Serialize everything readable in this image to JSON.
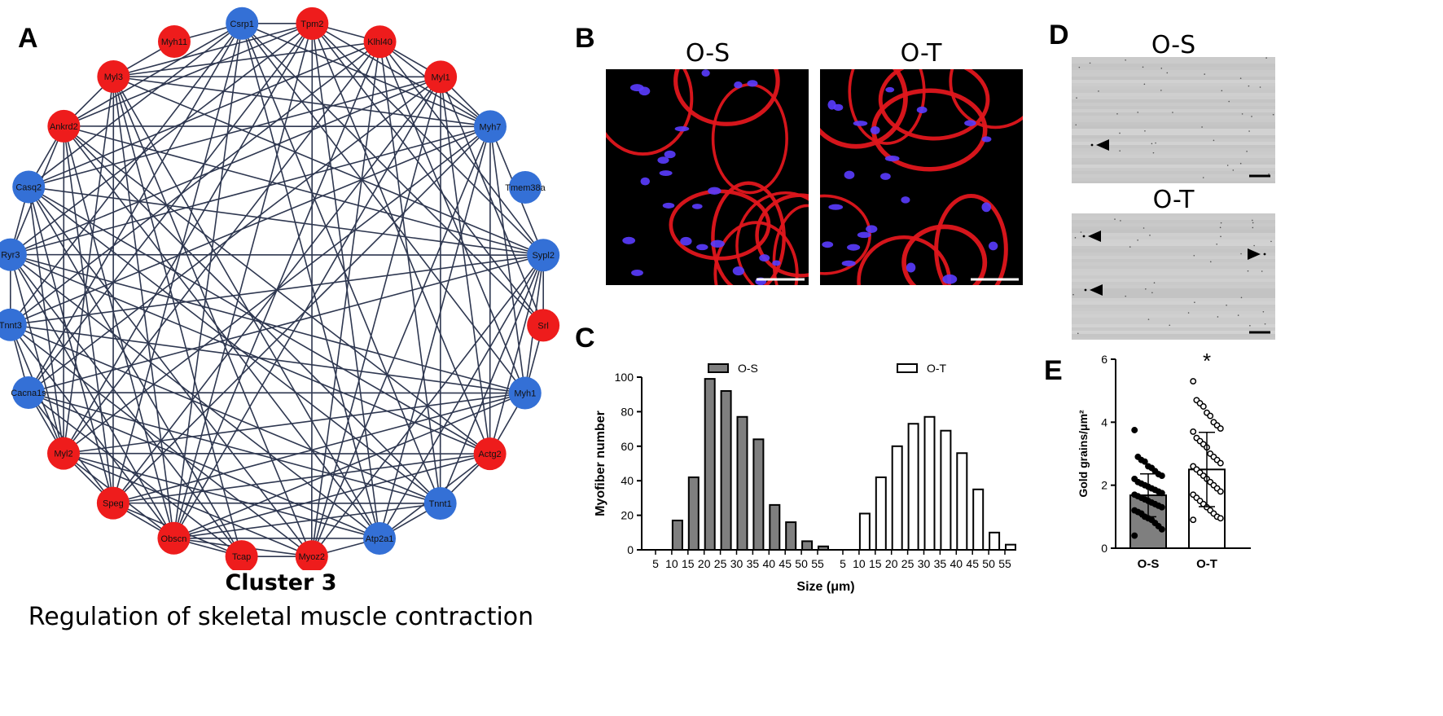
{
  "panels": {
    "a": "A",
    "b": "B",
    "c": "C",
    "d": "D",
    "e": "E"
  },
  "network": {
    "title": "Cluster 3",
    "subtitle": "Regulation of skeletal muscle contraction",
    "node_colors": {
      "up": "#ee1c1c",
      "down": "#3470d6"
    },
    "nodes": [
      {
        "label": "Csrp1",
        "group": "down"
      },
      {
        "label": "Tpm2",
        "group": "up"
      },
      {
        "label": "Klhl40",
        "group": "up"
      },
      {
        "label": "Myl1",
        "group": "up"
      },
      {
        "label": "Myh7",
        "group": "down"
      },
      {
        "label": "Tmem38a",
        "group": "down"
      },
      {
        "label": "Sypl2",
        "group": "down"
      },
      {
        "label": "Srl",
        "group": "up"
      },
      {
        "label": "Myh1",
        "group": "down"
      },
      {
        "label": "Actg2",
        "group": "up"
      },
      {
        "label": "Tnnt1",
        "group": "down"
      },
      {
        "label": "Atp2a1",
        "group": "down"
      },
      {
        "label": "Myoz2",
        "group": "up"
      },
      {
        "label": "Tcap",
        "group": "up"
      },
      {
        "label": "Obscn",
        "group": "up"
      },
      {
        "label": "Speg",
        "group": "up"
      },
      {
        "label": "Myl2",
        "group": "up"
      },
      {
        "label": "Cacna1s",
        "group": "down"
      },
      {
        "label": "Tnnt3",
        "group": "down"
      },
      {
        "label": "Ryr3",
        "group": "down"
      },
      {
        "label": "Casq2",
        "group": "down"
      },
      {
        "label": "Ankrd2",
        "group": "up"
      },
      {
        "label": "Myl3",
        "group": "up"
      },
      {
        "label": "Myh11",
        "group": "up"
      }
    ]
  },
  "micrographs": {
    "left_label": "O-S",
    "right_label": "O-T"
  },
  "tem": {
    "top_label": "O-S",
    "bottom_label": "O-T"
  },
  "chart_data": [
    {
      "type": "bar",
      "panel": "C",
      "xlabel": "Size (μm)",
      "ylabel": "Myofiber number",
      "ylim": [
        0,
        100
      ],
      "yticks": [
        0,
        20,
        40,
        60,
        80,
        100
      ],
      "categories": [
        "5",
        "10",
        "15",
        "20",
        "25",
        "30",
        "35",
        "40",
        "45",
        "50",
        "55"
      ],
      "series": [
        {
          "name": "O-S",
          "color": "#7f7f7f",
          "values": [
            0,
            17,
            42,
            99,
            92,
            77,
            64,
            26,
            16,
            5,
            2
          ]
        },
        {
          "name": "O-T",
          "color": "#ffffff",
          "values": [
            0,
            21,
            42,
            60,
            73,
            77,
            69,
            56,
            35,
            10,
            3
          ]
        }
      ]
    },
    {
      "type": "scatter",
      "panel": "E",
      "ylabel": "Gold grains/μm²",
      "ylim": [
        0,
        6
      ],
      "yticks": [
        0,
        2,
        4,
        6
      ],
      "categories": [
        "O-S",
        "O-T"
      ],
      "annotation": "*",
      "groups": [
        {
          "name": "O-S",
          "mean": 1.68,
          "sd": 0.68,
          "fill": "#7f7f7f",
          "points": [
            3.75,
            2.9,
            2.8,
            2.75,
            2.6,
            2.55,
            2.45,
            2.35,
            2.3,
            2.2,
            2.1,
            2.05,
            2.0,
            1.95,
            1.9,
            1.85,
            1.8,
            1.75,
            1.7,
            1.65,
            1.6,
            1.55,
            1.5,
            1.45,
            1.4,
            1.35,
            1.3,
            1.2,
            1.15,
            1.1,
            1.0,
            0.95,
            0.9,
            0.8,
            0.7,
            0.6,
            0.4
          ]
        },
        {
          "name": "O-T",
          "mean": 2.5,
          "sd": 1.18,
          "fill": "#ffffff",
          "points": [
            5.3,
            4.7,
            4.6,
            4.5,
            4.3,
            4.2,
            4.0,
            3.9,
            3.8,
            3.7,
            3.5,
            3.4,
            3.3,
            3.2,
            3.0,
            2.9,
            2.8,
            2.7,
            2.6,
            2.5,
            2.4,
            2.3,
            2.2,
            2.1,
            2.0,
            1.9,
            1.8,
            1.7,
            1.6,
            1.5,
            1.4,
            1.3,
            1.2,
            1.1,
            1.0,
            0.95,
            0.9
          ]
        }
      ]
    }
  ]
}
